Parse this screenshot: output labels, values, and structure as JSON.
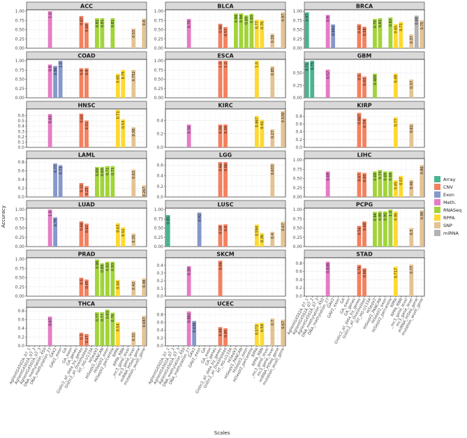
{
  "figure": {
    "xlabel": "Scales",
    "ylabel": "Accuracy"
  },
  "legend": [
    {
      "name": "Array",
      "color": "#4BB491"
    },
    {
      "name": "CNV",
      "color": "#F3815F"
    },
    {
      "name": "Exon",
      "color": "#8698CB"
    },
    {
      "name": "Meth.",
      "color": "#E57CC6"
    },
    {
      "name": "RNASeq",
      "color": "#A2D43A"
    },
    {
      "name": "RPPA",
      "color": "#FFD92F"
    },
    {
      "name": "SNP",
      "color": "#E4C393"
    },
    {
      "name": "miRNA",
      "color": "#B3B3B3"
    }
  ],
  "chart_data": {
    "type": "bar",
    "layout": "facet-grid 3 columns x 7 rows",
    "categories": [
      "AgilentG4502A_07_1",
      "AgilentG4502A_07_2",
      "AgilentG4502A_07_3",
      "DNA_methylation_450",
      "DNA_methylation_27",
      "GAV2",
      "GAV2_exon",
      "GA",
      "GA_exon",
      "GA_genes",
      "Gistic2_all_data_by_genes",
      "Gistic2_all_thresholded",
      "HT_HG-U133A",
      "HiSeqV2",
      "HiSeqV2_PANCAN",
      "HiSeqV2_exon",
      "HiSeqV2_percentile",
      "RPPA",
      "RPPA_RBN",
      "_mc3_gene_level",
      "mc3_gene_level",
      "miRNA_HiSeq_gene",
      "mutation_wustl_gene"
    ],
    "category_type": [
      "Array",
      "Array",
      "Array",
      "Meth.",
      "Meth.",
      "Exon",
      "Exon",
      "Exon",
      "Exon",
      "CNV",
      "CNV",
      "CNV",
      "RNASeq",
      "RNASeq",
      "RNASeq",
      "RNASeq",
      "RNASeq",
      "RPPA",
      "RPPA",
      "SNP",
      "SNP",
      "miRNA",
      "SNP"
    ],
    "panels": [
      {
        "title": "ACC",
        "ymax": 1.0,
        "ticks": [
          0,
          0.25,
          0.5,
          0.75,
          1
        ],
        "tick_labels": [
          "0.00",
          "0.25",
          "0.50",
          "0.75",
          "1.00"
        ],
        "bars": [
          [
            4,
            1.0,
            "1.0"
          ],
          [
            10,
            0.87,
            "0.87"
          ],
          [
            11,
            0.69,
            "0.69"
          ],
          [
            13,
            0.81,
            "0.81"
          ],
          [
            14,
            0.81,
            "0.81"
          ],
          [
            16,
            0.81,
            "0.81"
          ],
          [
            20,
            0.53,
            "0.53"
          ],
          [
            22,
            0.8,
            "0.8"
          ]
        ]
      },
      {
        "title": "BLCA",
        "ymax": 1.0,
        "ticks": [
          0,
          0.25,
          0.5,
          0.75,
          1
        ],
        "tick_labels": [
          "0.00",
          "0.25",
          "0.50",
          "0.75",
          "1.00"
        ],
        "bars": [
          [
            4,
            0.79,
            "0.79"
          ],
          [
            10,
            0.66,
            "0.66"
          ],
          [
            11,
            0.57,
            "0.57"
          ],
          [
            13,
            0.94,
            "0.94"
          ],
          [
            14,
            0.94,
            "0.94"
          ],
          [
            15,
            0.89,
            "0.89"
          ],
          [
            16,
            0.93,
            "0.93"
          ],
          [
            17,
            0.77,
            "0.77"
          ],
          [
            18,
            0.76,
            "0.76"
          ],
          [
            20,
            0.39,
            "0.39"
          ],
          [
            22,
            0.97,
            "0.97"
          ]
        ]
      },
      {
        "title": "BRCA",
        "ymax": 1.0,
        "ticks": [
          0,
          0.25,
          0.5,
          0.75,
          1
        ],
        "tick_labels": [
          "0.00",
          "0.25",
          "0.50",
          "0.75",
          "1.00"
        ],
        "bars": [
          [
            0,
            0.97,
            "0.97"
          ],
          [
            4,
            0.9,
            "0.9"
          ],
          [
            5,
            0.642,
            "0.642"
          ],
          [
            10,
            0.65,
            "0.65"
          ],
          [
            11,
            0.58,
            "0.58"
          ],
          [
            13,
            0.79,
            "0.79"
          ],
          [
            14,
            0.81,
            "0.81"
          ],
          [
            16,
            0.83,
            "0.83"
          ],
          [
            17,
            0.65,
            "0.65"
          ],
          [
            18,
            0.71,
            "0.71"
          ],
          [
            20,
            0.37,
            "0.37"
          ],
          [
            21,
            0.88,
            "0.88"
          ],
          [
            22,
            0.75,
            "0.75"
          ]
        ]
      },
      {
        "title": "COAD",
        "ymax": 1.0,
        "ticks": [
          0,
          0.25,
          0.5,
          0.75,
          1
        ],
        "tick_labels": [
          "0.00",
          "0.25",
          "0.50",
          "0.75",
          "1.00"
        ],
        "bars": [
          [
            4,
            0.9,
            "0.9"
          ],
          [
            5,
            0.86,
            "0.86"
          ],
          [
            6,
            1.0,
            "1.0"
          ],
          [
            10,
            0.8,
            "0.8"
          ],
          [
            11,
            0.8,
            "0.8"
          ],
          [
            17,
            0.65,
            "0.65"
          ],
          [
            18,
            0.75,
            "0.75"
          ],
          [
            20,
            0.752,
            "0.752"
          ]
        ]
      },
      {
        "title": "ESCA",
        "ymax": 1.0,
        "ticks": [
          0,
          0.25,
          0.5,
          0.75,
          1
        ],
        "tick_labels": [
          "0.00",
          "0.25",
          "0.50",
          "0.75",
          "1.00"
        ],
        "bars": [
          [
            10,
            1.0,
            "1.0"
          ],
          [
            11,
            1.0,
            "1.0"
          ],
          [
            17,
            1.0,
            "1.0"
          ],
          [
            20,
            0.85,
            "0.85"
          ]
        ]
      },
      {
        "title": "GBM",
        "ymax": 0.75,
        "ticks": [
          0,
          0.25,
          0.5
        ],
        "tick_labels": [
          "0.00",
          "0.25",
          "0.50"
        ],
        "bars": [
          [
            0,
            0.73,
            "0.73"
          ],
          [
            1,
            0.75,
            "0.75"
          ],
          [
            4,
            0.57,
            "0.57"
          ],
          [
            10,
            0.5,
            "0.5"
          ],
          [
            11,
            0.43,
            "0.43"
          ],
          [
            13,
            0.489,
            "0.489"
          ],
          [
            17,
            0.49,
            "0.49"
          ],
          [
            20,
            0.37,
            "0.37"
          ]
        ]
      },
      {
        "title": "HNSC",
        "ymax": 0.7,
        "ticks": [
          0,
          0.1,
          0.2,
          0.3,
          0.4,
          0.5,
          0.6
        ],
        "tick_labels": [
          "0.0",
          "0.1",
          "0.2",
          "0.3",
          "0.4",
          "0.5",
          "0.6"
        ],
        "bars": [
          [
            4,
            0.63,
            "0.63"
          ],
          [
            10,
            0.64,
            "0.64"
          ],
          [
            11,
            0.51,
            "0.51"
          ],
          [
            17,
            0.71,
            "0.71"
          ],
          [
            18,
            0.53,
            "0.53"
          ],
          [
            20,
            0.38,
            "0.38"
          ]
        ]
      },
      {
        "title": "KIRC",
        "ymax": 0.55,
        "ticks": [
          0,
          0.2,
          0.4
        ],
        "tick_labels": [
          "0.0",
          "0.2",
          "0.4"
        ],
        "bars": [
          [
            4,
            0.34,
            "0.34"
          ],
          [
            10,
            0.34,
            "0.34"
          ],
          [
            11,
            0.34,
            "0.34"
          ],
          [
            17,
            0.467,
            "0.467"
          ],
          [
            18,
            0.41,
            "0.41"
          ],
          [
            20,
            0.27,
            "0.27"
          ],
          [
            22,
            0.539,
            "0.539"
          ]
        ]
      },
      {
        "title": "KIRP",
        "ymax": 0.95,
        "ticks": [
          0,
          0.2,
          0.4,
          0.6,
          0.8
        ],
        "tick_labels": [
          "0.0",
          "0.2",
          "0.4",
          "0.6",
          "0.8"
        ],
        "bars": [
          [
            10,
            0.887,
            "0.887"
          ],
          [
            11,
            0.74,
            "0.74"
          ],
          [
            17,
            0.77,
            "0.77"
          ],
          [
            20,
            0.61,
            "0.61"
          ]
        ]
      },
      {
        "title": "LAML",
        "ymax": 0.85,
        "ticks": [
          0,
          0.2,
          0.4,
          0.6,
          0.8
        ],
        "tick_labels": [
          "0.0",
          "0.2",
          "0.4",
          "0.6",
          "0.8"
        ],
        "bars": [
          [
            5,
            0.77,
            "0.77"
          ],
          [
            6,
            0.73,
            "0.73"
          ],
          [
            10,
            0.32,
            "0.32"
          ],
          [
            11,
            0.25,
            "0.25"
          ],
          [
            13,
            0.69,
            "0.69"
          ],
          [
            14,
            0.69,
            "0.69"
          ],
          [
            15,
            0.71,
            "0.71"
          ],
          [
            16,
            0.71,
            "0.71"
          ],
          [
            20,
            0.63,
            "0.63"
          ],
          [
            22,
            0.267,
            "0.267"
          ]
        ]
      },
      {
        "title": "LGG",
        "ymax": 0.7,
        "ticks": [
          0,
          0.2,
          0.4,
          0.6
        ],
        "tick_labels": [
          "0.0",
          "0.2",
          "0.4",
          "0.6"
        ],
        "bars": [
          [
            10,
            0.66,
            "0.66"
          ],
          [
            11,
            0.66,
            "0.66"
          ],
          [
            20,
            0.633,
            "0.633"
          ]
        ]
      },
      {
        "title": "LIHC",
        "ymax": 1.0,
        "ticks": [
          0,
          0.25,
          0.5,
          0.75,
          1
        ],
        "tick_labels": [
          "0.00",
          "0.25",
          "0.50",
          "0.75",
          "1.00"
        ],
        "bars": [
          [
            4,
            0.69,
            "0.69"
          ],
          [
            10,
            0.67,
            "0.67"
          ],
          [
            11,
            0.65,
            "0.65"
          ],
          [
            13,
            0.69,
            "0.69"
          ],
          [
            14,
            0.73,
            "0.73"
          ],
          [
            15,
            0.69,
            "0.69"
          ],
          [
            16,
            0.69,
            "0.69"
          ],
          [
            17,
            0.45,
            "0.45"
          ],
          [
            18,
            0.57,
            "0.57"
          ],
          [
            20,
            0.46,
            "0.46"
          ],
          [
            22,
            0.86,
            "0.86"
          ]
        ]
      },
      {
        "title": "LUAD",
        "ymax": 1.0,
        "ticks": [
          0,
          0.25,
          0.5,
          0.75,
          1
        ],
        "tick_labels": [
          "0.00",
          "0.25",
          "0.50",
          "0.75",
          "1.00"
        ],
        "bars": [
          [
            4,
            1.0,
            "1.0"
          ],
          [
            5,
            0.79,
            "0.79"
          ],
          [
            10,
            0.68,
            "0.68"
          ],
          [
            11,
            0.62,
            "0.62"
          ],
          [
            17,
            0.63,
            "0.63"
          ],
          [
            18,
            0.52,
            "0.52"
          ],
          [
            20,
            0.35,
            "0.35"
          ]
        ]
      },
      {
        "title": "LUSC",
        "ymax": 1.0,
        "ticks": [
          0,
          0.25,
          0.5,
          0.75,
          1
        ],
        "tick_labels": [
          "0.00",
          "0.25",
          "0.50",
          "0.75",
          "1.00"
        ],
        "bars": [
          [
            0,
            0.85,
            "0.85"
          ],
          [
            6,
            0.92,
            "0.92"
          ],
          [
            10,
            0.59,
            "0.59"
          ],
          [
            11,
            0.6,
            "0.6"
          ],
          [
            17,
            0.594,
            "0.594"
          ],
          [
            18,
            0.36,
            "0.36"
          ],
          [
            20,
            0.4,
            "0.4"
          ],
          [
            22,
            0.67,
            "0.67"
          ]
        ]
      },
      {
        "title": "PCPG",
        "ymax": 1.0,
        "ticks": [
          0,
          0.25,
          0.5,
          0.75,
          1
        ],
        "tick_labels": [
          "0.00",
          "0.25",
          "0.50",
          "0.75",
          "1.00"
        ],
        "bars": [
          [
            10,
            0.56,
            "0.56"
          ],
          [
            11,
            0.68,
            "0.68"
          ],
          [
            13,
            0.94,
            "0.94"
          ],
          [
            14,
            0.95,
            "0.95"
          ],
          [
            15,
            0.95,
            "0.95"
          ],
          [
            16,
            1.0,
            "1.0"
          ],
          [
            17,
            0.95,
            "0.95"
          ],
          [
            20,
            0.5,
            "0.5"
          ],
          [
            22,
            0.98,
            "0.98"
          ]
        ]
      },
      {
        "title": "PRAD",
        "ymax": 1.0,
        "ticks": [
          0,
          0.25,
          0.5,
          0.75,
          1
        ],
        "tick_labels": [
          "0.00",
          "0.25",
          "0.50",
          "0.75",
          "1.00"
        ],
        "bars": [
          [
            10,
            0.5,
            "0.5"
          ],
          [
            11,
            0.45,
            "0.45"
          ],
          [
            13,
            0.99,
            "0.99"
          ],
          [
            14,
            0.89,
            "0.89"
          ],
          [
            15,
            0.93,
            "0.93"
          ],
          [
            16,
            0.93,
            "0.93"
          ],
          [
            17,
            0.44,
            "0.44"
          ],
          [
            20,
            0.42,
            "0.42"
          ],
          [
            22,
            0.48,
            "0.48"
          ]
        ]
      },
      {
        "title": "SKCM",
        "ymax": 0.48,
        "ticks": [
          0,
          0.1,
          0.2,
          0.3,
          0.4
        ],
        "tick_labels": [
          "0.0",
          "0.1",
          "0.2",
          "0.3",
          "0.4"
        ],
        "bars": [
          [
            4,
            0.39,
            "0.39"
          ],
          [
            10,
            0.46,
            "0.46"
          ]
        ]
      },
      {
        "title": "STAD",
        "ymax": 0.9,
        "ticks": [
          0,
          0.2,
          0.4,
          0.6,
          0.8
        ],
        "tick_labels": [
          "0.0",
          "0.2",
          "0.4",
          "0.6",
          "0.8"
        ],
        "bars": [
          [
            4,
            0.838,
            "0.838"
          ],
          [
            10,
            0.76,
            "0.76"
          ],
          [
            11,
            0.68,
            "0.68"
          ],
          [
            17,
            0.717,
            "0.717"
          ],
          [
            20,
            0.77,
            "0.77"
          ]
        ]
      },
      {
        "title": "THCA",
        "ymax": 0.85,
        "ticks": [
          0,
          0.2,
          0.4,
          0.6,
          0.8
        ],
        "tick_labels": [
          "0.0",
          "0.2",
          "0.4",
          "0.6",
          "0.8"
        ],
        "bars": [
          [
            4,
            0.67,
            "0.67"
          ],
          [
            10,
            0.3,
            "0.3"
          ],
          [
            11,
            0.27,
            "0.27"
          ],
          [
            13,
            0.77,
            "0.77"
          ],
          [
            14,
            0.77,
            "0.77"
          ],
          [
            15,
            0.83,
            "0.83"
          ],
          [
            16,
            0.76,
            "0.76"
          ],
          [
            17,
            0.54,
            "0.54"
          ],
          [
            20,
            0.32,
            "0.32"
          ],
          [
            22,
            0.687,
            "0.687"
          ]
        ]
      },
      {
        "title": "UCEC",
        "ymax": 0.95,
        "ticks": [
          0,
          0.2,
          0.4,
          0.6,
          0.8
        ],
        "tick_labels": [
          "0.0",
          "0.2",
          "0.4",
          "0.6",
          "0.8"
        ],
        "bars": [
          [
            4,
            0.881,
            "0.881"
          ],
          [
            5,
            0.636,
            "0.636"
          ],
          [
            10,
            0.48,
            "0.48"
          ],
          [
            11,
            0.45,
            "0.45"
          ],
          [
            17,
            0.573,
            "0.573"
          ],
          [
            18,
            0.59,
            "0.59"
          ],
          [
            20,
            0.7,
            "0.7"
          ],
          [
            22,
            0.67,
            "0.67"
          ]
        ]
      }
    ]
  }
}
